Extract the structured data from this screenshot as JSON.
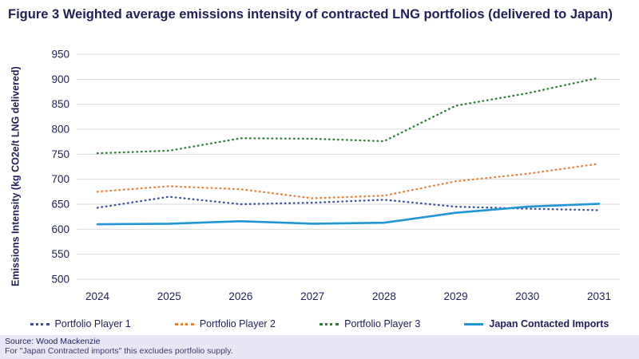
{
  "figure": {
    "title": "Figure 3 Weighted average emissions intensity of contracted LNG portfolios (delivered to Japan)",
    "source": "Source:  Wood Mackenzie",
    "note": "For \"Japan Contracted imports\" this excludes portfolio supply."
  },
  "chart_data": {
    "type": "line",
    "x": [
      "2024",
      "2025",
      "2026",
      "2027",
      "2028",
      "2029",
      "2030",
      "2031"
    ],
    "series": [
      {
        "name": "Portfolio Player 1",
        "color": "#3b4fa0",
        "style": "dotted",
        "values": [
          643,
          665,
          650,
          653,
          659,
          645,
          641,
          638
        ]
      },
      {
        "name": "Portfolio Player 2",
        "color": "#ed7d31",
        "style": "dotted",
        "values": [
          675,
          686,
          680,
          662,
          667,
          696,
          711,
          731
        ]
      },
      {
        "name": "Portfolio Player 3",
        "color": "#2e7d32",
        "style": "dotted",
        "values": [
          752,
          757,
          782,
          781,
          776,
          847,
          872,
          903
        ]
      },
      {
        "name": "Japan Contacted Imports",
        "color": "#2196d4",
        "style": "solid",
        "values": [
          610,
          611,
          616,
          611,
          613,
          633,
          645,
          651
        ]
      }
    ],
    "title": "Figure 3 Weighted average emissions intensity of contracted LNG portfolios (delivered to Japan)",
    "xlabel": "",
    "ylabel": "Emissions Intensity (kg CO2e/t LNG delivered)",
    "ylim": [
      500,
      950
    ],
    "ytick_step": 50,
    "grid": true,
    "legend_position": "bottom",
    "gridline_color": "#d9d9d9",
    "tick_label_color": "#1f1f5c"
  }
}
